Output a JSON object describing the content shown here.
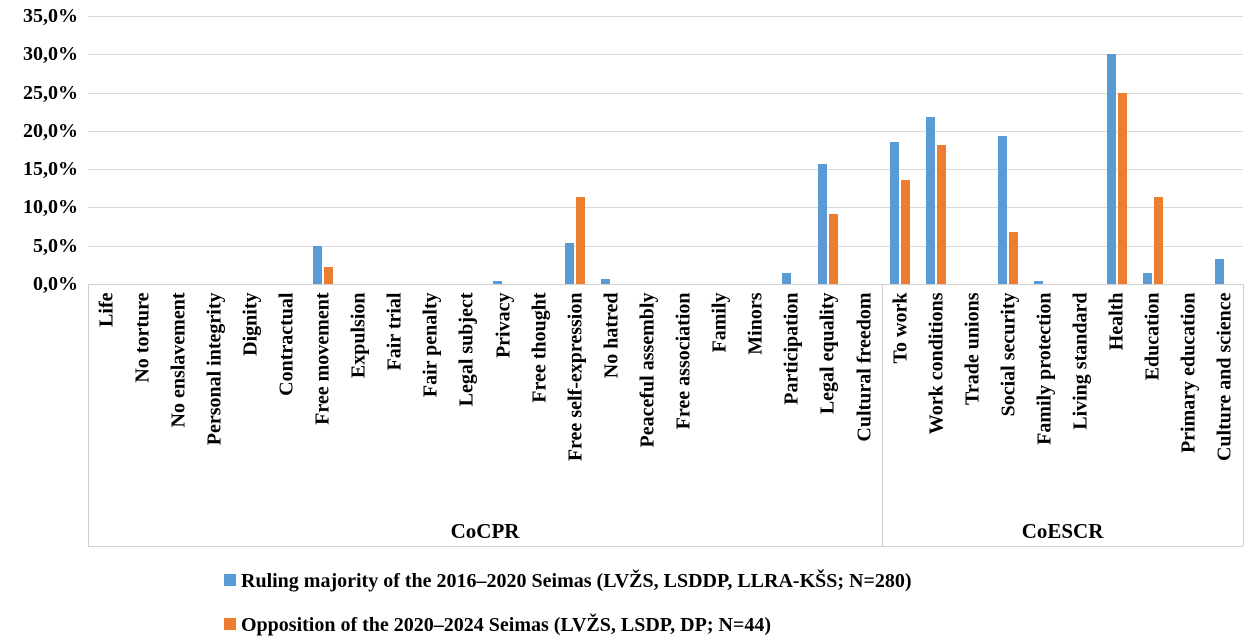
{
  "colors": {
    "series_blue": "#5B9BD5",
    "series_orange": "#ED7D31",
    "gridline": "#D9D9D9",
    "axis_line": "#CFCFCF",
    "text": "#000000",
    "background": "#FFFFFF"
  },
  "chart_data": {
    "type": "bar",
    "title": "",
    "grid": true,
    "legend_position": "bottom-left",
    "y_axis": {
      "min": 0,
      "max": 35,
      "step": 5,
      "ticks": [
        "0,0%",
        "5,0%",
        "10,0%",
        "15,0%",
        "20,0%",
        "25,0%",
        "30,0%",
        "35,0%"
      ]
    },
    "groups": [
      {
        "label": "CoCPR",
        "category_count": 22
      },
      {
        "label": "CoESCR",
        "category_count": 10
      }
    ],
    "categories": [
      "Life",
      "No torture",
      "No enslavement",
      "Personal integrity",
      "Dignity",
      "Contractual",
      "Free movement",
      "Expulsion",
      "Fair trial",
      "Fair penalty",
      "Legal subject",
      "Privacy",
      "Free thought",
      "Free self-expression",
      "No hatred",
      "Peaceful assembly",
      "Free association",
      "Family",
      "Minors",
      "Participation",
      "Legal equality",
      "Cultural freedom",
      "To work",
      "Work conditions",
      "Trade unions",
      "Social security",
      "Family protection",
      "Living standard",
      "Health",
      "Education",
      "Primary education",
      "Culture and science"
    ],
    "series": [
      {
        "name": "Ruling majority of the 2016–2020 Seimas (LVŽS, LSDDP, LLRA-KŠS; N=280)",
        "color": "#5B9BD5",
        "values": [
          0,
          0,
          0,
          0,
          0,
          0,
          5.0,
          0,
          0,
          0,
          0,
          0.36,
          0,
          5.36,
          0.71,
          0,
          0,
          0,
          0,
          1.43,
          15.71,
          0,
          18.57,
          21.79,
          0,
          19.29,
          0.36,
          0,
          30.0,
          1.43,
          0,
          3.21
        ]
      },
      {
        "name": "Opposition of the 2020–2024 Seimas (LVŽS, LSDP, DP; N=44)",
        "color": "#ED7D31",
        "values": [
          0,
          0,
          0,
          0,
          0,
          0,
          2.27,
          0,
          0,
          0,
          0,
          0,
          0,
          11.36,
          0,
          0,
          0,
          0,
          0,
          0,
          9.09,
          0,
          13.64,
          18.18,
          0,
          6.82,
          0,
          0,
          25.0,
          11.36,
          0,
          0
        ]
      }
    ]
  }
}
